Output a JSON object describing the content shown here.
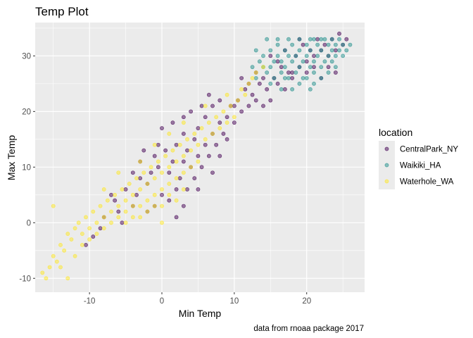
{
  "chart_data": {
    "type": "scatter",
    "title": "Temp Plot",
    "xlabel": "Min Temp",
    "ylabel": "Max Temp",
    "caption": "data from rnoaa package 2017",
    "xlim": [
      -17.5,
      28
    ],
    "ylim": [
      -12.5,
      36
    ],
    "x_ticks": [
      -10,
      0,
      10,
      20
    ],
    "y_ticks": [
      -10,
      0,
      10,
      20,
      30
    ],
    "grid": true,
    "point_opacity": 0.5,
    "legend": {
      "title": "location",
      "position": "right"
    },
    "series": [
      {
        "name": "CentralPark_NY",
        "color": "#440154",
        "points": [
          [
            -10.5,
            -4
          ],
          [
            -9.5,
            -2.5
          ],
          [
            -8.5,
            -1
          ],
          [
            -8,
            1
          ],
          [
            -7,
            5
          ],
          [
            -6,
            2
          ],
          [
            -6.5,
            4
          ],
          [
            -5.5,
            0
          ],
          [
            -5,
            6
          ],
          [
            -4,
            3
          ],
          [
            -3.5,
            5
          ],
          [
            -3,
            8
          ],
          [
            -3,
            11
          ],
          [
            -2,
            7
          ],
          [
            -1.5,
            9
          ],
          [
            -1,
            12
          ],
          [
            -0.5,
            10
          ],
          [
            0,
            17
          ],
          [
            0.5,
            13
          ],
          [
            1,
            4
          ],
          [
            1,
            9
          ],
          [
            1.5,
            11
          ],
          [
            2,
            6
          ],
          [
            2,
            14
          ],
          [
            2.5,
            8
          ],
          [
            3,
            11
          ],
          [
            3,
            16
          ],
          [
            3.5,
            6
          ],
          [
            3.5,
            13
          ],
          [
            4,
            10
          ],
          [
            4.5,
            15
          ],
          [
            4.5,
            8
          ],
          [
            5,
            12
          ],
          [
            5,
            17
          ],
          [
            5.5,
            10
          ],
          [
            6,
            14
          ],
          [
            6,
            19
          ],
          [
            6.5,
            12
          ],
          [
            7,
            16
          ],
          [
            7,
            21
          ],
          [
            7.5,
            14
          ],
          [
            8,
            18
          ],
          [
            8.5,
            16
          ],
          [
            9,
            19
          ],
          [
            9.5,
            21
          ],
          [
            10,
            18
          ],
          [
            10.5,
            22
          ],
          [
            11,
            20
          ],
          [
            11.5,
            24
          ],
          [
            12,
            21
          ],
          [
            12.5,
            23
          ],
          [
            13,
            22
          ],
          [
            13.5,
            25
          ],
          [
            14,
            21
          ],
          [
            14.5,
            24
          ],
          [
            15,
            22
          ],
          [
            15.5,
            26
          ],
          [
            16,
            25
          ],
          [
            16.5,
            28
          ],
          [
            17,
            24
          ],
          [
            17.5,
            27
          ],
          [
            18,
            26
          ],
          [
            18.5,
            30
          ],
          [
            19,
            28
          ],
          [
            19.5,
            32
          ],
          [
            20,
            29
          ],
          [
            20.5,
            31
          ],
          [
            21,
            30
          ],
          [
            21.5,
            33
          ],
          [
            22,
            31
          ],
          [
            22.5,
            32
          ],
          [
            23,
            30
          ],
          [
            23.5,
            33
          ],
          [
            24,
            31
          ],
          [
            24.5,
            34
          ],
          [
            25,
            32
          ],
          [
            25.5,
            33
          ],
          [
            16,
            29
          ],
          [
            17,
            31
          ],
          [
            18,
            27
          ],
          [
            19,
            33
          ],
          [
            20,
            27
          ],
          [
            21,
            28
          ],
          [
            22,
            26
          ],
          [
            23,
            28
          ],
          [
            24,
            27
          ],
          [
            15,
            30
          ],
          [
            14,
            26
          ],
          [
            13,
            27
          ],
          [
            12,
            25
          ],
          [
            10,
            21
          ],
          [
            9,
            15
          ],
          [
            8,
            12
          ],
          [
            7,
            9
          ],
          [
            5,
            6
          ],
          [
            3,
            3
          ],
          [
            2,
            1
          ],
          [
            0,
            5
          ],
          [
            -1,
            3
          ],
          [
            -2,
            2
          ],
          [
            -4,
            9
          ],
          [
            -2.5,
            13
          ],
          [
            -0.5,
            14
          ],
          [
            1.5,
            18
          ],
          [
            3,
            19
          ],
          [
            4,
            20
          ],
          [
            5.5,
            21
          ],
          [
            6.5,
            23
          ],
          [
            8,
            22
          ],
          [
            11,
            26
          ]
        ]
      },
      {
        "name": "Waikiki_HA",
        "color": "#21908C",
        "points": [
          [
            13,
            31
          ],
          [
            13.5,
            29
          ],
          [
            14,
            30
          ],
          [
            14.5,
            33
          ],
          [
            15,
            28
          ],
          [
            15,
            31
          ],
          [
            15.5,
            29
          ],
          [
            15.5,
            26
          ],
          [
            16,
            30
          ],
          [
            16,
            32
          ],
          [
            16.5,
            27
          ],
          [
            16.5,
            29
          ],
          [
            17,
            31
          ],
          [
            17,
            28
          ],
          [
            17.5,
            30
          ],
          [
            17.5,
            26
          ],
          [
            18,
            29
          ],
          [
            18,
            32
          ],
          [
            18.5,
            27
          ],
          [
            18.5,
            30
          ],
          [
            19,
            28
          ],
          [
            19,
            31
          ],
          [
            19.5,
            29
          ],
          [
            19.5,
            26
          ],
          [
            20,
            30
          ],
          [
            20,
            32
          ],
          [
            20.5,
            28
          ],
          [
            20.5,
            31
          ],
          [
            21,
            29
          ],
          [
            21,
            27
          ],
          [
            21.5,
            30
          ],
          [
            21.5,
            32
          ],
          [
            22,
            28
          ],
          [
            22,
            31
          ],
          [
            22.5,
            29
          ],
          [
            22.5,
            33
          ],
          [
            23,
            30
          ],
          [
            23,
            32
          ],
          [
            23.5,
            31
          ],
          [
            23.5,
            29
          ],
          [
            24,
            32
          ],
          [
            24,
            30
          ],
          [
            24.5,
            31
          ],
          [
            24.5,
            33
          ],
          [
            25,
            32
          ],
          [
            25,
            30
          ],
          [
            25.5,
            31
          ],
          [
            26,
            32
          ],
          [
            14,
            28
          ],
          [
            15,
            25
          ],
          [
            16.5,
            24
          ],
          [
            17,
            26
          ],
          [
            18,
            24
          ],
          [
            19,
            25
          ],
          [
            20,
            26
          ],
          [
            20.5,
            24
          ],
          [
            21,
            25
          ],
          [
            22,
            26
          ],
          [
            23,
            27
          ],
          [
            24,
            28
          ],
          [
            12.5,
            28
          ],
          [
            13,
            26
          ],
          [
            14.5,
            27
          ],
          [
            16,
            33
          ],
          [
            17.5,
            33
          ],
          [
            19,
            33
          ],
          [
            20.5,
            33
          ],
          [
            22,
            33
          ],
          [
            23.5,
            33
          ],
          [
            21,
            33
          ]
        ]
      },
      {
        "name": "Waterhole_WA",
        "color": "#FDE725",
        "points": [
          [
            -16.5,
            -9
          ],
          [
            -16,
            -10
          ],
          [
            -15.5,
            -8
          ],
          [
            -15,
            -6
          ],
          [
            -14.5,
            -7
          ],
          [
            -14,
            -4
          ],
          [
            -13.5,
            -5
          ],
          [
            -13,
            -2
          ],
          [
            -12.5,
            -3
          ],
          [
            -12,
            -1
          ],
          [
            -11.5,
            0
          ],
          [
            -11,
            -2
          ],
          [
            -10.5,
            1
          ],
          [
            -10,
            -1
          ],
          [
            -9.5,
            2
          ],
          [
            -9,
            0
          ],
          [
            -8.5,
            3
          ],
          [
            -8,
            1
          ],
          [
            -7.5,
            4
          ],
          [
            -7,
            2
          ],
          [
            -6.5,
            5
          ],
          [
            -6,
            3
          ],
          [
            -5.5,
            6
          ],
          [
            -5,
            4
          ],
          [
            -4.5,
            7
          ],
          [
            -4,
            5
          ],
          [
            -3.5,
            8
          ],
          [
            -3,
            6
          ],
          [
            -2.5,
            9
          ],
          [
            -2,
            7
          ],
          [
            -1.5,
            10
          ],
          [
            -1,
            8
          ],
          [
            -0.5,
            11
          ],
          [
            0,
            9
          ],
          [
            0.5,
            12
          ],
          [
            1,
            10
          ],
          [
            1.5,
            13
          ],
          [
            2,
            11
          ],
          [
            2.5,
            14
          ],
          [
            3,
            12
          ],
          [
            3.5,
            15
          ],
          [
            4,
            13
          ],
          [
            4.5,
            16
          ],
          [
            5,
            14
          ],
          [
            5.5,
            17
          ],
          [
            6,
            15
          ],
          [
            6.5,
            18
          ],
          [
            7,
            16
          ],
          [
            7.5,
            19
          ],
          [
            8,
            17
          ],
          [
            8.5,
            20
          ],
          [
            9,
            18
          ],
          [
            9.5,
            21
          ],
          [
            10,
            19
          ],
          [
            10.5,
            22
          ],
          [
            11,
            24
          ],
          [
            11.5,
            23
          ],
          [
            12,
            25
          ],
          [
            12.5,
            26
          ],
          [
            13,
            27
          ],
          [
            -13,
            -10
          ],
          [
            -14,
            -8
          ],
          [
            -12,
            -6
          ],
          [
            -11,
            -4
          ],
          [
            -10,
            -3
          ],
          [
            -9,
            -2
          ],
          [
            -8,
            -1
          ],
          [
            -7,
            0
          ],
          [
            -6,
            1
          ],
          [
            -5,
            2
          ],
          [
            -4,
            1
          ],
          [
            -3,
            3
          ],
          [
            -2,
            4
          ],
          [
            -1,
            5
          ],
          [
            0,
            6
          ],
          [
            1,
            7
          ],
          [
            2,
            8
          ],
          [
            3,
            9
          ],
          [
            4,
            10
          ],
          [
            5,
            11
          ],
          [
            -2,
            2
          ],
          [
            -1,
            3
          ],
          [
            0,
            3
          ],
          [
            1,
            5
          ],
          [
            -3,
            1
          ],
          [
            -4,
            3
          ],
          [
            -5,
            0
          ],
          [
            0,
            0
          ],
          [
            2,
            4
          ],
          [
            3,
            6
          ],
          [
            -15,
            3
          ],
          [
            -8,
            6
          ],
          [
            -6,
            9
          ],
          [
            -3,
            11
          ],
          [
            -1,
            14
          ],
          [
            1,
            16
          ],
          [
            3,
            18
          ],
          [
            6,
            21
          ],
          [
            9,
            23
          ],
          [
            14,
            28
          ]
        ]
      }
    ]
  }
}
